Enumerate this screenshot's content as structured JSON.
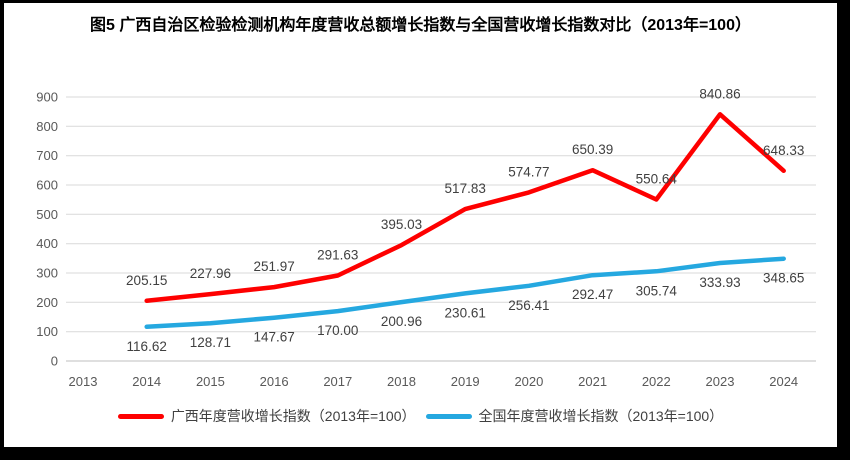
{
  "title": "图5  广西自治区检验检测机构年度营收总额增长指数与全国营收增长指数对比（2013年=100）",
  "colors": {
    "frame": "#000000",
    "background": "#ffffff",
    "gridline": "#d9d9d9",
    "axis_line": "#bfbfbf",
    "tick_text": "#595959",
    "data_label_text": "#404040",
    "title_text": "#000000",
    "series_red": "#fe0000",
    "series_blue": "#25a8e0"
  },
  "chart_data": {
    "type": "line",
    "categories": [
      "2013",
      "2014",
      "2015",
      "2016",
      "2017",
      "2018",
      "2019",
      "2020",
      "2021",
      "2022",
      "2023",
      "2024"
    ],
    "series": [
      {
        "name": "广西年度营收增长指数（2013年=100）",
        "color": "#fe0000",
        "label_position": "above",
        "values": [
          null,
          205.15,
          227.96,
          251.97,
          291.63,
          395.03,
          517.83,
          574.77,
          650.39,
          550.64,
          840.86,
          648.33
        ]
      },
      {
        "name": "全国年度营收增长指数（2013年=100）",
        "color": "#25a8e0",
        "label_position": "below",
        "values": [
          null,
          116.62,
          128.71,
          147.67,
          170.0,
          200.96,
          230.61,
          256.41,
          292.47,
          305.74,
          333.93,
          348.65
        ]
      }
    ],
    "ylim": [
      0,
      900
    ],
    "ytick_step": 100,
    "ytick_labels": [
      "0",
      "100",
      "200",
      "300",
      "400",
      "500",
      "600",
      "700",
      "800",
      "900"
    ],
    "grid": true,
    "legend_position": "bottom",
    "data_labels_decimals": 2
  }
}
